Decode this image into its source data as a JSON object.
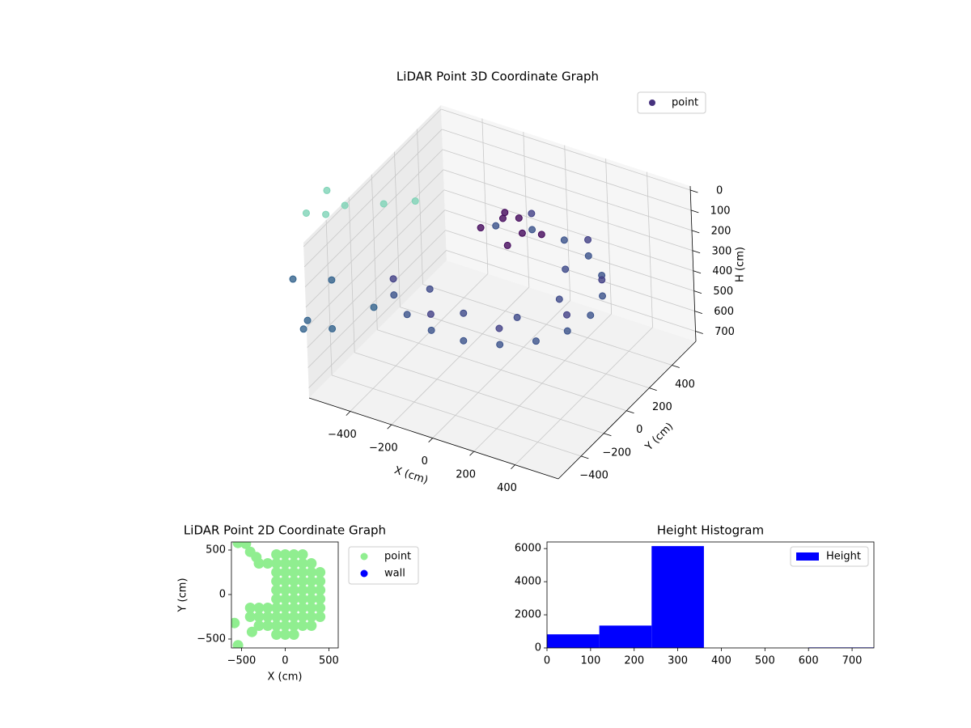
{
  "chart_data": [
    {
      "type": "scatter3d",
      "title": "LiDAR Point 3D Coordinate Graph",
      "xlabel": "X (cm)",
      "ylabel": "Y (cm)",
      "zlabel": "H (cm)",
      "xlim": [
        -600,
        610
      ],
      "ylim": [
        -600,
        610
      ],
      "zlim": [
        750,
        -20
      ],
      "xticks": [
        {
          "value": -400,
          "label": "−400"
        },
        {
          "value": -200,
          "label": "−200"
        },
        0,
        200,
        400
      ],
      "yticks": [
        {
          "value": -400,
          "label": "−400"
        },
        {
          "value": -200,
          "label": "−200"
        },
        0,
        200,
        400
      ],
      "zticks": [
        0,
        100,
        200,
        300,
        400,
        500,
        600,
        700
      ],
      "grid": true,
      "legend": "upper right",
      "series": [
        {
          "name": "point",
          "color": "#46327e",
          "x": [
            -345,
            -225,
            -78,
            78,
            225,
            345,
            423,
            450,
            423,
            345,
            225,
            78,
            -78,
            -225,
            -345,
            -78,
            225,
            423,
            423,
            225,
            -78,
            -212,
            0,
            212,
            300,
            212,
            -50,
            0,
            60,
            -120,
            120,
            20,
            -80,
            -800,
            -655,
            -400,
            -595,
            -474,
            -578,
            -600,
            -721,
            -358,
            -479,
            -721,
            -660
          ],
          "y": [
            -289,
            -390,
            -443,
            -443,
            -390,
            -289,
            -154,
            0,
            154,
            289,
            390,
            443,
            443,
            390,
            -289,
            -443,
            -390,
            -154,
            154,
            390,
            443,
            -212,
            -300,
            -212,
            0,
            212,
            150,
            200,
            120,
            80,
            180,
            60,
            220,
            -355,
            -277,
            -368,
            -598,
            -600,
            -664,
            -237,
            -358,
            -56,
            -116,
            -176,
            -298
          ],
          "z": [
            330,
            330,
            330,
            330,
            330,
            330,
            330,
            330,
            330,
            330,
            330,
            330,
            330,
            330,
            250,
            250,
            250,
            250,
            250,
            250,
            250,
            300,
            300,
            300,
            300,
            300,
            100,
            110,
            120,
            130,
            140,
            160,
            120,
            365,
            365,
            365,
            365,
            365,
            365,
            0,
            10,
            0,
            20,
            0,
            30
          ],
          "colors": [
            "#3b528b",
            "#3b528b",
            "#3b528b",
            "#3b528b",
            "#3b528b",
            "#3b528b",
            "#3b528b",
            "#3b528b",
            "#3b528b",
            "#3b528b",
            "#3b528b",
            "#3b528b",
            "#3b528b",
            "#3b528b",
            "#424086",
            "#424086",
            "#424086",
            "#424086",
            "#424086",
            "#424086",
            "#424086",
            "#3e4a89",
            "#3e4a89",
            "#3e4a89",
            "#3e4a89",
            "#3e4a89",
            "#450a5c",
            "#450a5c",
            "#450a5c",
            "#450a5c",
            "#450a5c",
            "#450a5c",
            "#450a5c",
            "#33638d",
            "#33638d",
            "#33638d",
            "#33638d",
            "#33638d",
            "#33638d",
            "#7ed3b6",
            "#7ed3b6",
            "#7ed3b6",
            "#7ed3b6",
            "#7ed3b6",
            "#7ed3b6"
          ]
        }
      ]
    },
    {
      "type": "scatter",
      "title": "LiDAR Point 2D Coordinate Graph",
      "xlabel": "X (cm)",
      "ylabel": "Y (cm)",
      "xlim": [
        -615,
        607
      ],
      "ylim": [
        -600,
        591
      ],
      "xticks": [
        {
          "value": -500,
          "label": "−500"
        },
        0,
        500
      ],
      "yticks": [
        {
          "value": -500,
          "label": "−500"
        },
        0,
        500
      ],
      "legend": "outside upper right",
      "series": [
        {
          "name": "point",
          "color": "#90ee90",
          "x": [
            -100,
            0,
            100,
            200,
            -300,
            -200,
            -100,
            0,
            100,
            200,
            300,
            -100,
            0,
            100,
            200,
            300,
            400,
            -100,
            0,
            100,
            200,
            300,
            400,
            -100,
            0,
            100,
            200,
            300,
            400,
            -100,
            0,
            100,
            200,
            300,
            400,
            -400,
            -300,
            -200,
            -100,
            0,
            100,
            200,
            300,
            400,
            -400,
            -300,
            -200,
            -100,
            0,
            100,
            200,
            300,
            400,
            -300,
            -200,
            -100,
            0,
            100,
            200,
            300,
            -100,
            0,
            100,
            -540,
            -450,
            -580,
            -540,
            -380,
            -400,
            -330
          ],
          "values": [
            450,
            450,
            450,
            450,
            350,
            350,
            350,
            350,
            350,
            350,
            350,
            250,
            250,
            250,
            250,
            250,
            250,
            150,
            150,
            150,
            150,
            150,
            150,
            50,
            50,
            50,
            50,
            50,
            50,
            -50,
            -50,
            -50,
            -50,
            -50,
            -50,
            -150,
            -150,
            -150,
            -150,
            -150,
            -150,
            -150,
            -150,
            -150,
            -250,
            -250,
            -250,
            -250,
            -250,
            -250,
            -250,
            -250,
            -250,
            -350,
            -350,
            -350,
            -350,
            -350,
            -350,
            -350,
            -450,
            -450,
            -450,
            580,
            570,
            -320,
            -570,
            -420,
            480,
            420
          ]
        },
        {
          "name": "wall",
          "color": "#0000ff",
          "x": [],
          "values": []
        }
      ]
    },
    {
      "type": "histogram",
      "title": "Height Histogram",
      "bins": [
        0,
        120,
        240,
        360,
        480,
        600,
        750
      ],
      "xlim": [
        0,
        750
      ],
      "ylim": [
        0,
        6400
      ],
      "xticks": [
        0,
        100,
        200,
        300,
        400,
        500,
        600,
        700
      ],
      "yticks": [
        0,
        2000,
        4000,
        6000
      ],
      "legend": "upper right",
      "series": [
        {
          "name": "Height",
          "color": "#0000ff",
          "values": [
            820,
            1350,
            6150,
            0,
            0,
            30
          ]
        }
      ]
    }
  ]
}
